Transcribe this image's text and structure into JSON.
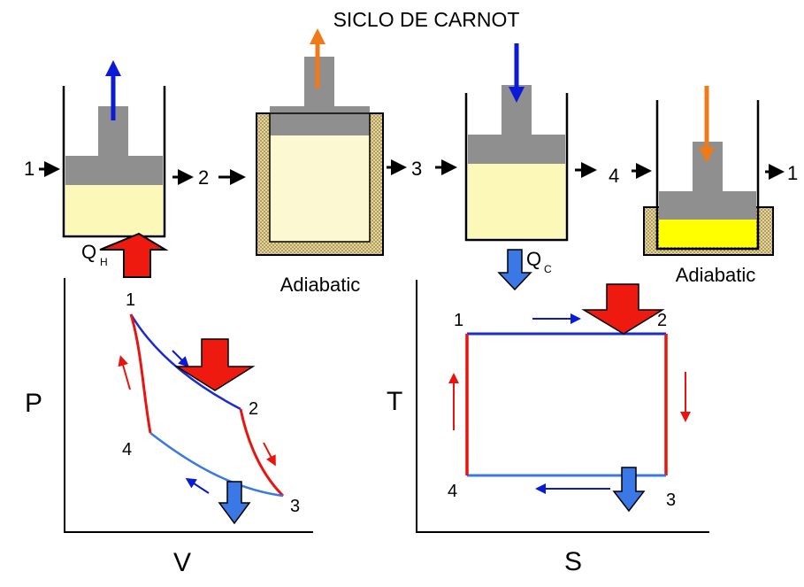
{
  "title": "SICLO DE CARNOT",
  "stage_labels": {
    "s1_in": "1",
    "s1_out": "2",
    "s2_out": "3",
    "s3_out": "4",
    "s4_out": "1"
  },
  "caption_adiabatic_1": "Adiabatic",
  "caption_adiabatic_2": "Adiabatic",
  "heat_in_label": "Q",
  "heat_in_sub": "H",
  "heat_out_label": "Q",
  "heat_out_sub": "C",
  "pv": {
    "y_axis": "P",
    "x_axis": "V",
    "points": {
      "p1": "1",
      "p2": "2",
      "p3": "3",
      "p4": "4"
    }
  },
  "ts": {
    "y_axis": "T",
    "x_axis": "S",
    "points": {
      "p1": "1",
      "p2": "2",
      "p3": "3",
      "p4": "4"
    }
  },
  "colors": {
    "red": "#e8150f",
    "blue": "#0a1ad6",
    "light_blue": "#3a78e6",
    "orange": "#f07a1a",
    "fluid": "#fbf8b8",
    "fluid_bright": "#ffff00",
    "piston": "#8f8f8f",
    "insulation": "#e8d9a4"
  }
}
